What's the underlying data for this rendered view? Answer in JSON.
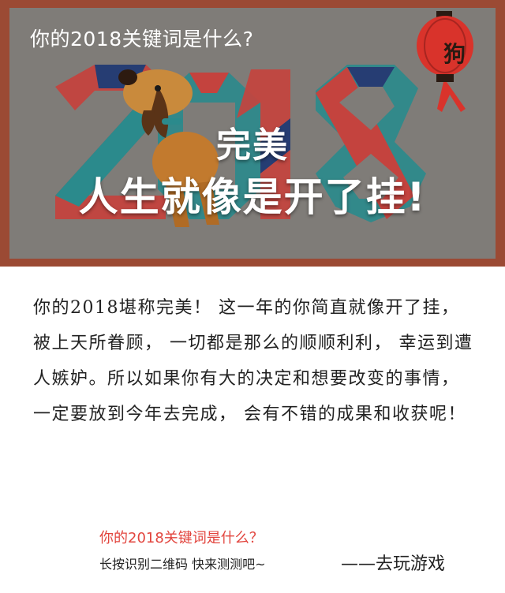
{
  "banner": {
    "title": "你的2018关键词是什么?",
    "lantern_char": "狗",
    "headline_line1": "完美",
    "headline_line2": "人生就像是开了挂!"
  },
  "body_text": "你的2018堪称完美！ 这一年的你简直就像开了挂， 被上天所眷顾， 一切都是那么的顺顺利利， 幸运到遭人嫉妒。所以如果你有大的决定和想要改变的事情， 一定要放到今年去完成， 会有不错的成果和收获呢！",
  "footer": {
    "question": "你的2018关键词是什么？",
    "hint": "长按识别二维码   快来测测吧~",
    "signature": "——去玩游戏"
  },
  "colors": {
    "frame": "#9b4a34",
    "banner_bg": "#7f7c78",
    "accent_red": "#e2453e",
    "ribbon_red": "#c4433e",
    "ribbon_teal": "#2b8a8c",
    "ribbon_navy": "#263d73"
  },
  "icons": [
    "dog-illustration",
    "lantern-icon",
    "ribbon-2018-graphic"
  ]
}
